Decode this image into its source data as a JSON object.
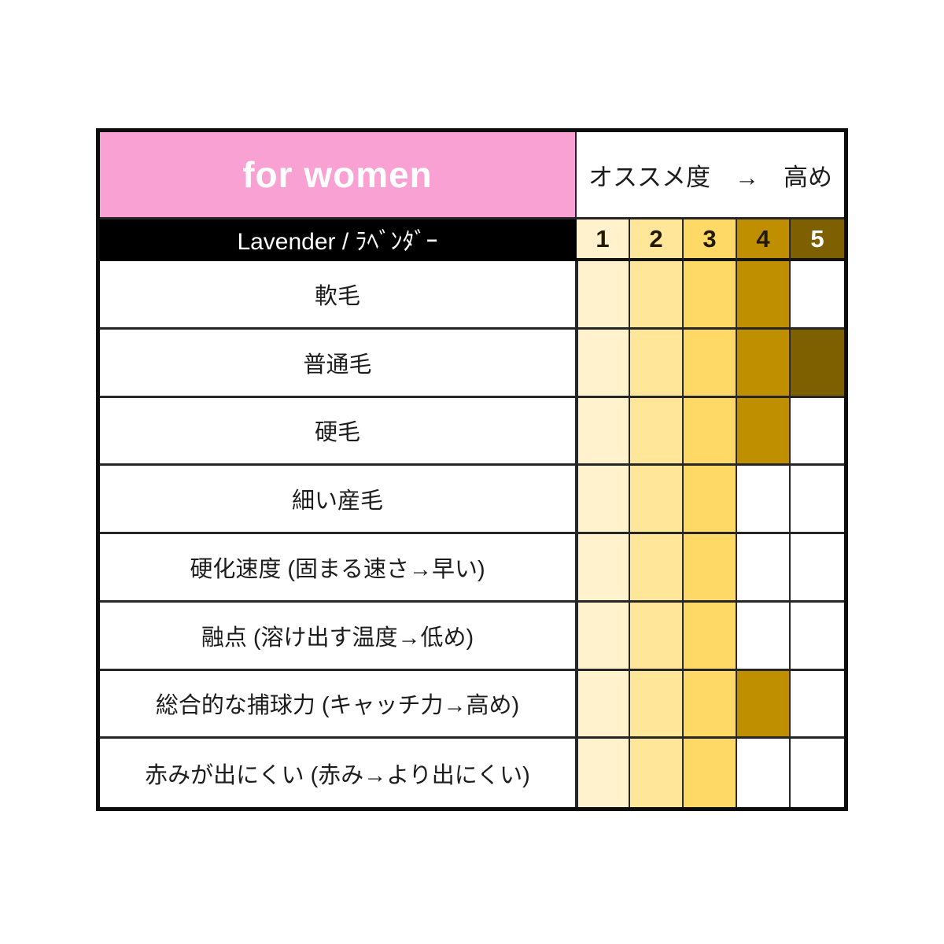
{
  "header": {
    "audience_label": "for women",
    "recommend_label": "オススメ度　→　高め",
    "product_label": "Lavender / ﾗﾍﾞﾝﾀﾞｰ",
    "scale": [
      "1",
      "2",
      "3",
      "4",
      "5"
    ]
  },
  "rows": [
    {
      "label": "軟毛",
      "rating": 4
    },
    {
      "label": "普通毛",
      "rating": 5
    },
    {
      "label": "硬毛",
      "rating": 4
    },
    {
      "label": "細い産毛",
      "rating": 3
    },
    {
      "label": "硬化速度 (固まる速さ→早い)",
      "rating": 3
    },
    {
      "label": "融点 (溶け出す温度→低め)",
      "rating": 3
    },
    {
      "label": "総合的な捕球力 (キャッチ力→高め)",
      "rating": 4
    },
    {
      "label": "赤みが出にくい (赤み→より出にくい)",
      "rating": 3
    }
  ],
  "colors": {
    "pink_header_bg": "#F9A1D2",
    "product_header_bg": "#000000",
    "product_header_text": "#FFFFFF",
    "scale": [
      "#FFF2CC",
      "#FFE699",
      "#FFD966",
      "#BF8F00",
      "#7F6000"
    ],
    "scale_text_dark": "#221A00",
    "scale_text_light": "#FFFFFF",
    "empty_cell": "#FFFFFF",
    "grid_line": "#262626"
  },
  "chart_data": {
    "type": "heatmap",
    "title": "for women — Lavender / ﾗﾍﾞﾝﾀﾞｰ",
    "legend": "オススメ度 → 高め",
    "categories": [
      "軟毛",
      "普通毛",
      "硬毛",
      "細い産毛",
      "硬化速度 (固まる速さ→早い)",
      "融点 (溶け出す温度→低め)",
      "総合的な捕球力 (キャッチ力→高め)",
      "赤みが出にくい (赤み→より出にくい)"
    ],
    "values": [
      4,
      5,
      4,
      3,
      3,
      3,
      4,
      3
    ],
    "scale_ticks": [
      1,
      2,
      3,
      4,
      5
    ],
    "scale_range": [
      1,
      5
    ],
    "scale_colors": [
      "#FFF2CC",
      "#FFE699",
      "#FFD966",
      "#BF8F00",
      "#7F6000"
    ],
    "legend_position": "top-right",
    "grid": true
  }
}
